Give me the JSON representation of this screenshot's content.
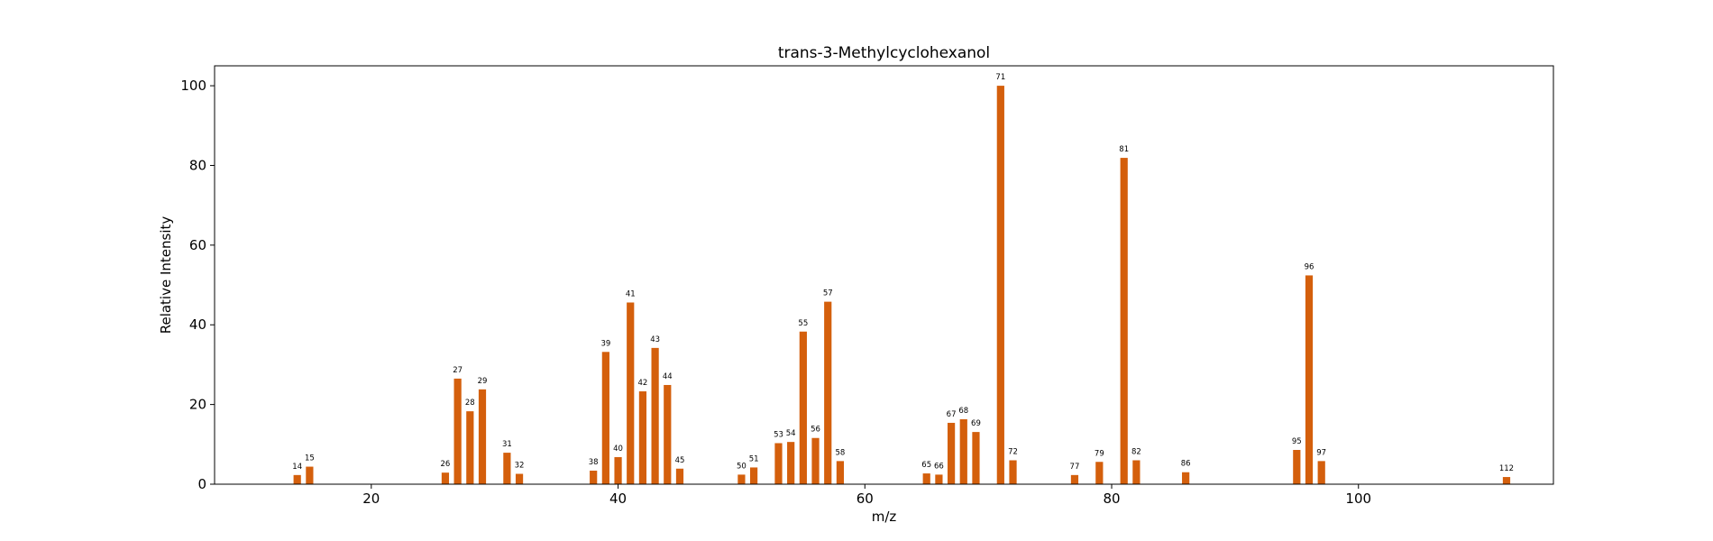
{
  "chart_data": {
    "type": "bar",
    "title": "trans-3-Methylcyclohexanol",
    "xlabel": "m/z",
    "ylabel": "Relative Intensity",
    "xlim": [
      7.3,
      115.8
    ],
    "ylim": [
      0,
      105
    ],
    "xticks": [
      20,
      40,
      60,
      80,
      100
    ],
    "yticks": [
      0,
      20,
      40,
      60,
      80,
      100
    ],
    "grid": false,
    "bar_color": "#d45f0c",
    "x": [
      14,
      15,
      26,
      27,
      28,
      29,
      31,
      32,
      38,
      39,
      40,
      41,
      42,
      43,
      44,
      45,
      50,
      51,
      53,
      54,
      55,
      56,
      57,
      58,
      65,
      66,
      67,
      68,
      69,
      71,
      72,
      77,
      79,
      81,
      82,
      86,
      95,
      96,
      97,
      112
    ],
    "values": [
      2.3,
      4.4,
      2.9,
      26.5,
      18.3,
      23.8,
      7.9,
      2.6,
      3.4,
      33.2,
      6.8,
      45.6,
      23.3,
      34.2,
      24.9,
      3.9,
      2.4,
      4.2,
      10.3,
      10.6,
      38.3,
      11.6,
      45.8,
      5.8,
      2.7,
      2.4,
      15.4,
      16.3,
      13.1,
      100,
      6.0,
      2.3,
      5.6,
      81.9,
      6.0,
      3.0,
      8.6,
      52.4,
      5.8,
      1.8
    ]
  }
}
